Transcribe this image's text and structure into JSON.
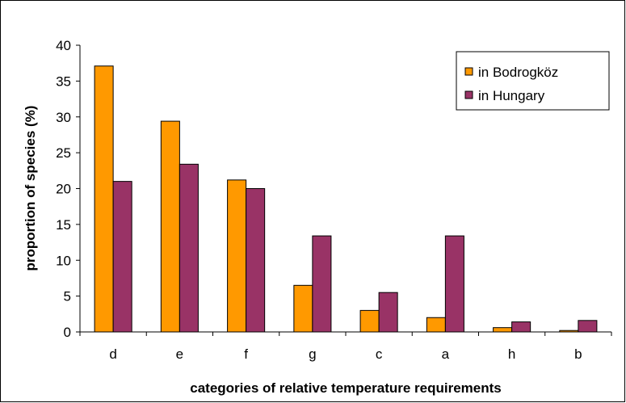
{
  "chart_data": {
    "type": "bar",
    "title": "",
    "xlabel": "categories of relative temperature requirements",
    "ylabel": "proportion of species (%)",
    "ylim": [
      0,
      40
    ],
    "yticks": [
      0,
      5,
      10,
      15,
      20,
      25,
      30,
      35,
      40
    ],
    "categories": [
      "d",
      "e",
      "f",
      "g",
      "c",
      "a",
      "h",
      "b"
    ],
    "series": [
      {
        "name": "in Bodrogköz",
        "color": "#FF9900",
        "values": [
          37.1,
          29.4,
          21.2,
          6.5,
          3.0,
          2.0,
          0.6,
          0.2
        ]
      },
      {
        "name": "in Hungary",
        "color": "#993366",
        "values": [
          21.0,
          23.4,
          20.0,
          13.4,
          5.5,
          13.4,
          1.4,
          1.6
        ]
      }
    ],
    "grid": false,
    "legend_position": "top-right"
  }
}
